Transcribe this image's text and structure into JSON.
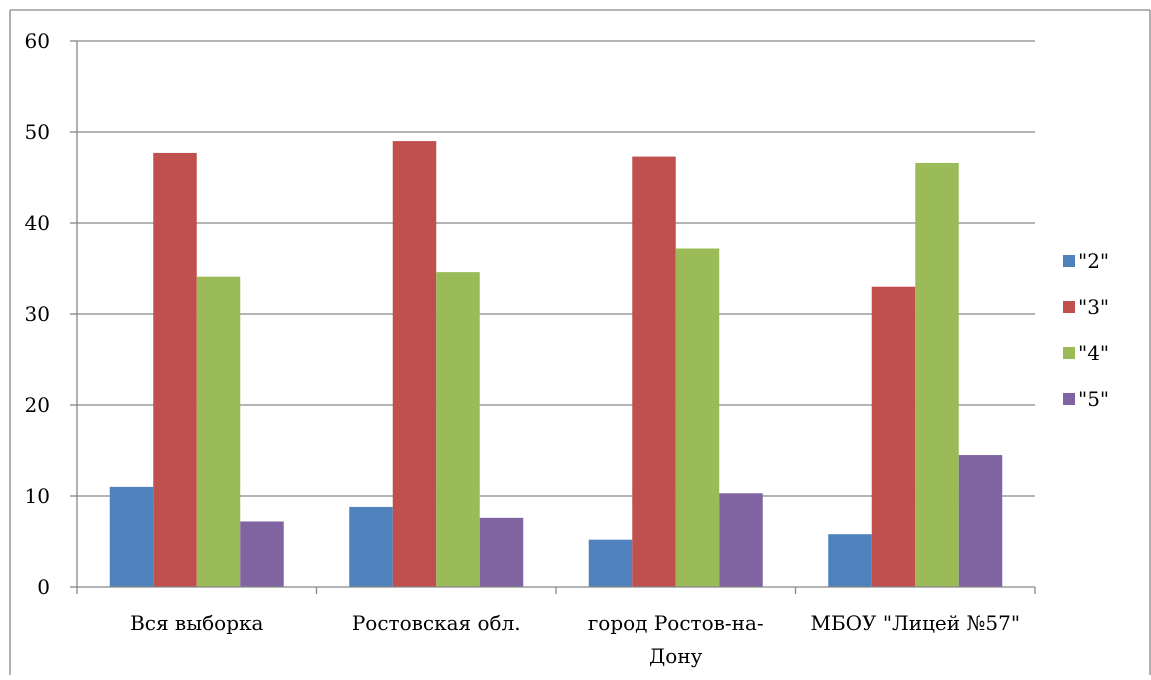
{
  "chart_data": {
    "type": "bar",
    "categories": [
      [
        "Вся выборка"
      ],
      [
        "Ростовская обл."
      ],
      [
        "город Ростов-на-",
        "Дону"
      ],
      [
        "МБОУ \"Лицей №57\""
      ]
    ],
    "series": [
      {
        "name": "\"2\"",
        "color": "#4F81BD",
        "values": [
          11.0,
          8.8,
          5.2,
          5.8
        ]
      },
      {
        "name": "\"3\"",
        "color": "#C0504D",
        "values": [
          47.7,
          49.0,
          47.3,
          33.0
        ]
      },
      {
        "name": "\"4\"",
        "color": "#9BBB59",
        "values": [
          34.1,
          34.6,
          37.2,
          46.6
        ]
      },
      {
        "name": "\"5\"",
        "color": "#8064A2",
        "values": [
          7.2,
          7.6,
          10.3,
          14.5
        ]
      }
    ],
    "ylim": [
      0,
      60
    ],
    "yticks": [
      0,
      10,
      20,
      30,
      40,
      50,
      60
    ],
    "grid": true,
    "legend": "right",
    "title": "",
    "xlabel": "",
    "ylabel": ""
  }
}
